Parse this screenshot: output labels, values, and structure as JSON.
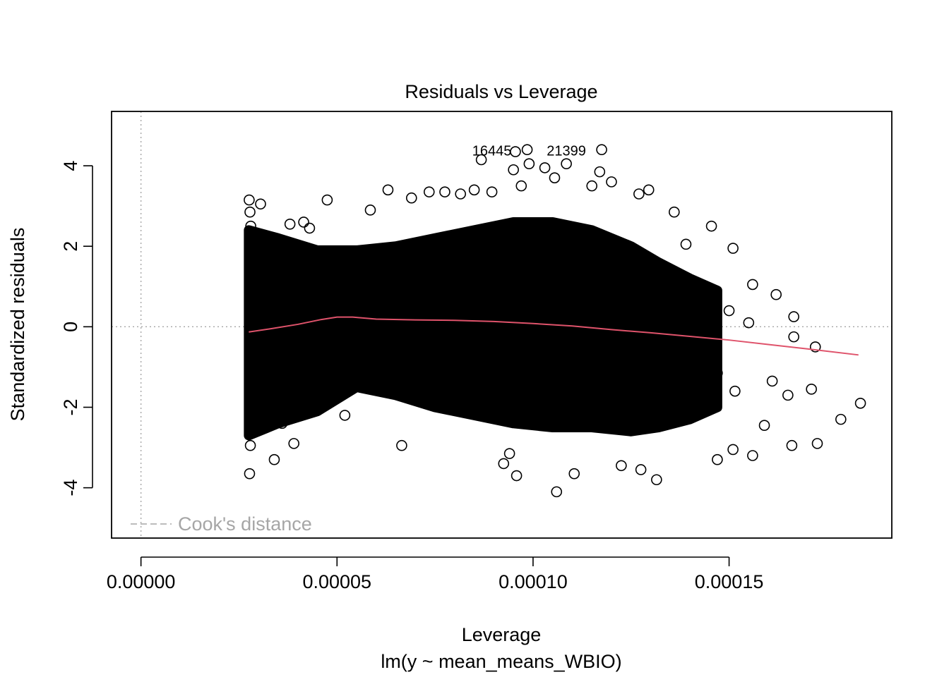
{
  "chart_data": {
    "type": "scatter",
    "title": "Residuals vs Leverage",
    "subtitle": "lm(y ~ mean_means_WBIO)",
    "xlabel": "Leverage",
    "ylabel": "Standardized residuals",
    "xlim": [
      -7.5e-06,
      0.0001915
    ],
    "ylim": [
      -5.25,
      5.35
    ],
    "x_ticks": [
      {
        "value": 0.0,
        "label": "0.00000"
      },
      {
        "value": 5e-05,
        "label": "0.00005"
      },
      {
        "value": 0.0001,
        "label": "0.00010"
      },
      {
        "value": 0.00015,
        "label": "0.00015"
      }
    ],
    "y_ticks": [
      {
        "value": -4,
        "label": "-4"
      },
      {
        "value": -2,
        "label": "-2"
      },
      {
        "value": 0,
        "label": "0"
      },
      {
        "value": 2,
        "label": "2"
      },
      {
        "value": 4,
        "label": "4"
      }
    ],
    "reference_lines": {
      "h": 0,
      "v": 0,
      "style": "dotted",
      "color": "#a6a6a6"
    },
    "point_style": {
      "shape": "open-circle",
      "color": "#000000"
    },
    "points": [
      [
        2.77e-05,
        -3.65
      ],
      [
        2.76e-05,
        3.15
      ],
      [
        2.78e-05,
        2.85
      ],
      [
        2.79e-05,
        -2.95
      ],
      [
        2.8e-05,
        2.5
      ],
      [
        3.05e-05,
        3.05
      ],
      [
        3.4e-05,
        -3.3
      ],
      [
        3.6e-05,
        -2.4
      ],
      [
        3.8e-05,
        2.55
      ],
      [
        3.9e-05,
        -2.9
      ],
      [
        4.15e-05,
        2.6
      ],
      [
        4.3e-05,
        2.45
      ],
      [
        4.75e-05,
        3.15
      ],
      [
        5.2e-05,
        -2.2
      ],
      [
        5.85e-05,
        2.9
      ],
      [
        6.3e-05,
        3.4
      ],
      [
        6.65e-05,
        -2.95
      ],
      [
        6.9e-05,
        3.2
      ],
      [
        7.35e-05,
        3.35
      ],
      [
        7.75e-05,
        3.35
      ],
      [
        8.15e-05,
        3.3
      ],
      [
        8.5e-05,
        3.4
      ],
      [
        8.68e-05,
        4.15
      ],
      [
        8.95e-05,
        3.35
      ],
      [
        9.25e-05,
        -3.4
      ],
      [
        9.4e-05,
        -3.15
      ],
      [
        9.5e-05,
        3.9
      ],
      [
        9.55e-05,
        4.35
      ],
      [
        9.58e-05,
        -3.7
      ],
      [
        9.7e-05,
        3.5
      ],
      [
        9.85e-05,
        4.4
      ],
      [
        9.9e-05,
        4.05
      ],
      [
        0.000103,
        3.95
      ],
      [
        0.0001055,
        3.7
      ],
      [
        0.000106,
        -4.1
      ],
      [
        0.0001085,
        4.05
      ],
      [
        0.0001105,
        -3.65
      ],
      [
        0.000115,
        3.5
      ],
      [
        0.000117,
        3.85
      ],
      [
        0.0001175,
        4.4
      ],
      [
        0.00012,
        3.6
      ],
      [
        0.0001225,
        -3.45
      ],
      [
        0.000127,
        3.3
      ],
      [
        0.0001275,
        -3.55
      ],
      [
        0.0001295,
        3.4
      ],
      [
        0.0001315,
        -3.8
      ],
      [
        0.000136,
        2.85
      ],
      [
        0.000139,
        2.05
      ],
      [
        0.0001455,
        2.5
      ],
      [
        0.000147,
        -3.3
      ],
      [
        0.000151,
        1.95
      ],
      [
        0.000156,
        1.05
      ],
      [
        0.000162,
        0.8
      ],
      [
        0.0001665,
        0.25
      ],
      [
        0.0001665,
        -0.25
      ],
      [
        0.000166,
        -2.95
      ],
      [
        0.000165,
        -1.7
      ],
      [
        0.000171,
        -1.55
      ],
      [
        0.000172,
        -0.5
      ],
      [
        0.0001725,
        -2.9
      ],
      [
        0.0001785,
        -2.3
      ],
      [
        0.0001835,
        -1.9
      ],
      [
        0.000159,
        -2.45
      ],
      [
        0.000161,
        -1.35
      ],
      [
        0.000156,
        -3.2
      ],
      [
        0.000151,
        -3.05
      ],
      [
        0.0001515,
        -1.6
      ],
      [
        0.000147,
        -1.15
      ],
      [
        0.00015,
        0.4
      ],
      [
        0.000155,
        0.1
      ]
    ],
    "density_band": {
      "x": [
        2.75e-05,
        3.5e-05,
        4.5e-05,
        5.5e-05,
        6.5e-05,
        7.5e-05,
        8.5e-05,
        9.5e-05,
        0.000105,
        0.000115,
        0.000125,
        0.000132,
        0.00014,
        0.000147
      ],
      "upper": [
        2.4,
        2.2,
        1.9,
        1.9,
        2.0,
        2.2,
        2.4,
        2.6,
        2.6,
        2.4,
        2.0,
        1.6,
        1.2,
        0.9
      ],
      "lower": [
        -2.7,
        -2.4,
        -2.1,
        -1.5,
        -1.7,
        -2.0,
        -2.2,
        -2.4,
        -2.5,
        -2.5,
        -2.6,
        -2.5,
        -2.3,
        -2.0
      ]
    },
    "smoother": {
      "color": "#df536b",
      "x": [
        2.75e-05,
        3.3e-05,
        4e-05,
        4.6e-05,
        5e-05,
        5.4e-05,
        6e-05,
        7e-05,
        8e-05,
        9e-05,
        0.0001,
        0.00011,
        0.00012,
        0.00013,
        0.00014,
        0.00015,
        0.00016,
        0.00017,
        0.000183
      ],
      "y": [
        -0.13,
        -0.05,
        0.06,
        0.18,
        0.24,
        0.24,
        0.19,
        0.17,
        0.16,
        0.13,
        0.08,
        0.02,
        -0.07,
        -0.15,
        -0.24,
        -0.33,
        -0.44,
        -0.55,
        -0.7
      ]
    },
    "labels": [
      {
        "text": "16445",
        "x": 8.95e-05,
        "y": 4.38
      },
      {
        "text": "21399",
        "x": 0.0001085,
        "y": 4.38
      }
    ],
    "legend": {
      "label": "Cook's distance",
      "placement": "bottom-left"
    }
  }
}
